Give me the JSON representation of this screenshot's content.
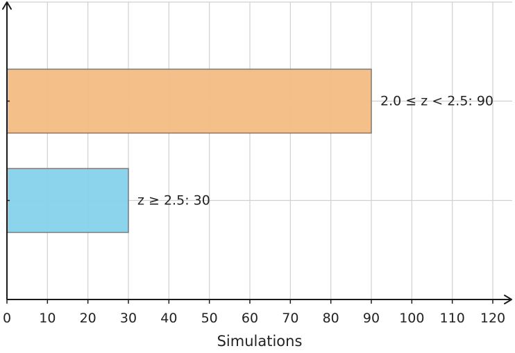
{
  "chart_data": {
    "type": "bar",
    "orientation": "horizontal",
    "categories": [
      "2.0 ≤ z < 2.5",
      "z ≥ 2.5"
    ],
    "values": [
      90,
      30
    ],
    "data_labels": [
      "2.0 ≤ z < 2.5: 90",
      "z ≥ 2.5: 30"
    ],
    "colors": [
      "#f4bc84",
      "#85d2ea"
    ],
    "xlabel": "Simulations",
    "ylabel": "",
    "title": "",
    "xlim": [
      0,
      120
    ],
    "xticks": [
      "0",
      "10",
      "20",
      "30",
      "40",
      "50",
      "60",
      "70",
      "80",
      "90",
      "100",
      "110",
      "120"
    ],
    "grid": true,
    "legend": "none"
  }
}
